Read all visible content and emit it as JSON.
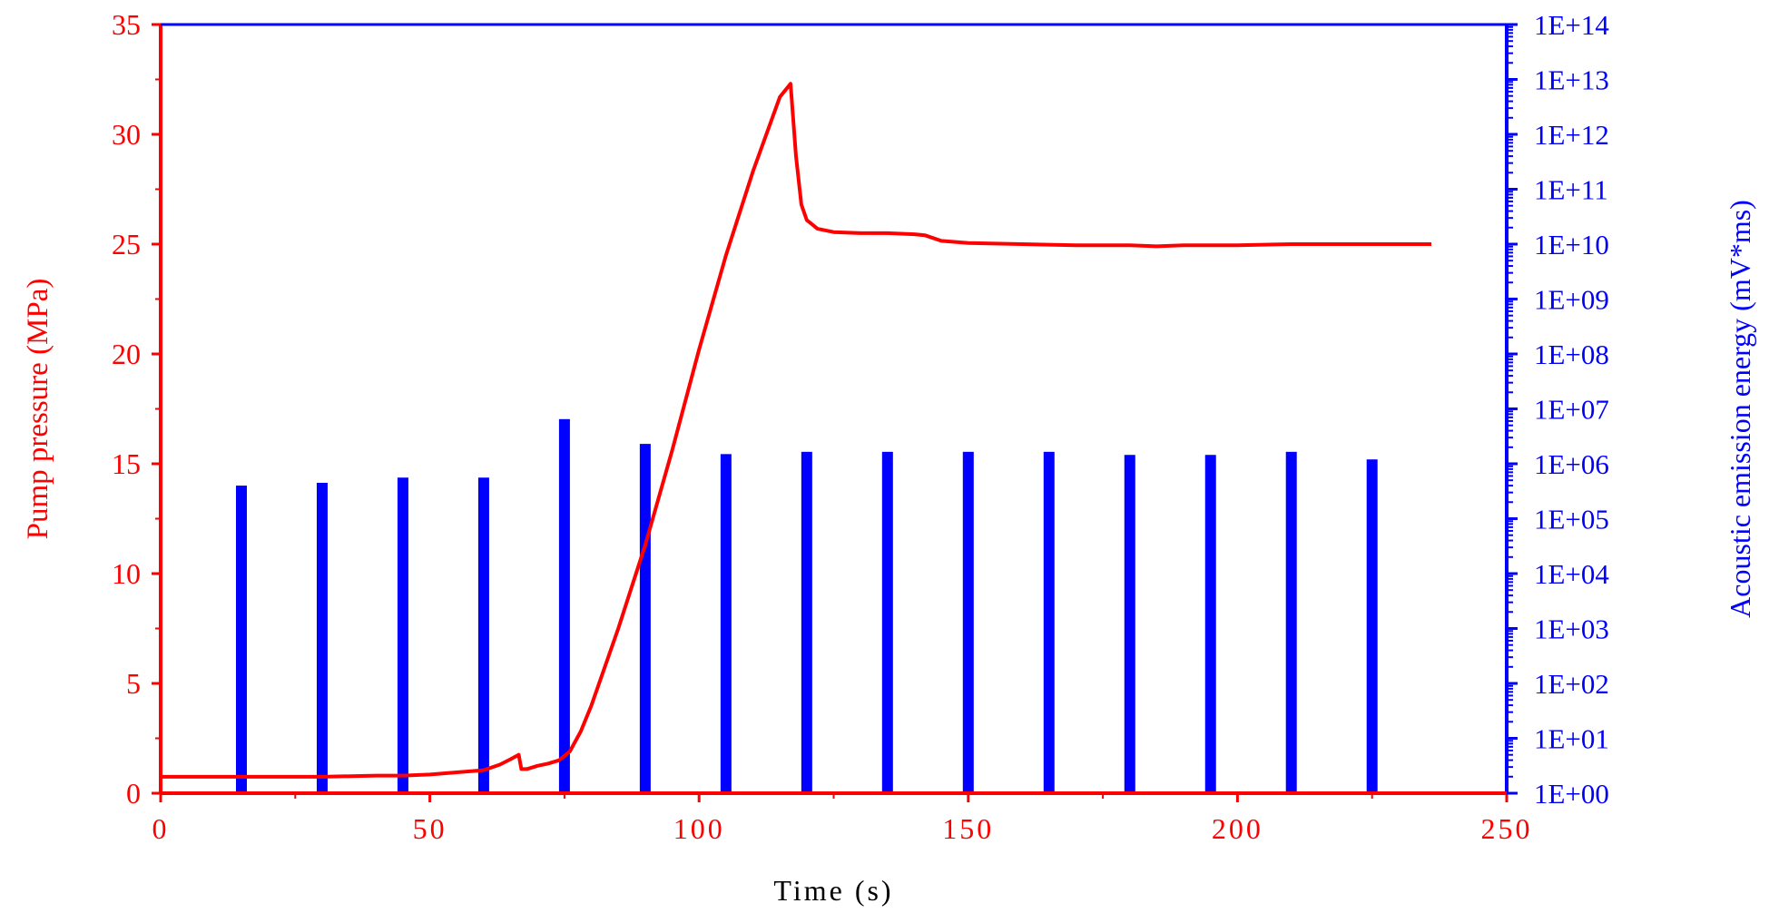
{
  "chart_data": {
    "type": "line+bar",
    "xlabel": "Time (s)",
    "ylabel_left": "Pump pressure (MPa)",
    "ylabel_right": "Acoustic emission energy (mV*ms)",
    "xlim": [
      0,
      250
    ],
    "ylim_left": [
      0,
      35
    ],
    "ylim_right_log10": [
      0,
      14
    ],
    "y_right_scale": "log",
    "x_ticks": [
      0,
      50,
      100,
      150,
      200,
      250
    ],
    "x_tick_labels": [
      "0",
      "50",
      "100",
      "150",
      "200",
      "250"
    ],
    "y_left_ticks": [
      0,
      5,
      10,
      15,
      20,
      25,
      30,
      35
    ],
    "y_left_tick_labels": [
      "0",
      "5",
      "10",
      "15",
      "20",
      "25",
      "30",
      "35"
    ],
    "y_right_ticks_log10": [
      0,
      1,
      2,
      3,
      4,
      5,
      6,
      7,
      8,
      9,
      10,
      11,
      12,
      13,
      14
    ],
    "y_right_tick_labels": [
      "1E+00",
      "1E+01",
      "1E+02",
      "1E+03",
      "1E+04",
      "1E+05",
      "1E+06",
      "1E+07",
      "1E+08",
      "1E+09",
      "1E+10",
      "1E+11",
      "1E+12",
      "1E+13",
      "1E+14"
    ],
    "grid": false,
    "colors": {
      "pressure": "#ff0000",
      "acoustic": "#0000ff"
    },
    "series": [
      {
        "name": "Pump pressure",
        "type": "line",
        "axis": "left",
        "x": [
          0,
          10,
          20,
          30,
          40,
          45,
          50,
          55,
          60,
          63,
          65,
          66.5,
          67,
          68,
          70,
          72,
          74,
          76,
          78,
          80,
          85,
          90,
          95,
          100,
          105,
          110,
          115,
          117,
          118,
          119,
          120,
          122,
          125,
          130,
          135,
          140,
          142,
          145,
          150,
          160,
          170,
          180,
          185,
          190,
          200,
          210,
          220,
          230,
          236
        ],
        "y": [
          0.75,
          0.75,
          0.75,
          0.75,
          0.8,
          0.8,
          0.85,
          0.95,
          1.05,
          1.3,
          1.55,
          1.75,
          1.1,
          1.1,
          1.25,
          1.35,
          1.5,
          1.9,
          2.8,
          4.0,
          7.5,
          11.3,
          15.6,
          20.2,
          24.5,
          28.3,
          31.7,
          32.3,
          29.0,
          26.8,
          26.1,
          25.7,
          25.55,
          25.5,
          25.5,
          25.45,
          25.4,
          25.15,
          25.05,
          25.0,
          24.95,
          24.95,
          24.9,
          24.95,
          24.95,
          25.0,
          25.0,
          25.0,
          25.0
        ]
      },
      {
        "name": "Acoustic emission energy",
        "type": "bar",
        "axis": "right",
        "x": [
          15,
          30,
          45,
          60,
          75,
          90,
          105,
          120,
          135,
          150,
          165,
          180,
          195,
          210,
          225
        ],
        "values": [
          400000,
          450000,
          560000,
          560000,
          6500000,
          2300000,
          1500000,
          1650000,
          1650000,
          1650000,
          1650000,
          1450000,
          1450000,
          1650000,
          1200000
        ]
      }
    ]
  }
}
